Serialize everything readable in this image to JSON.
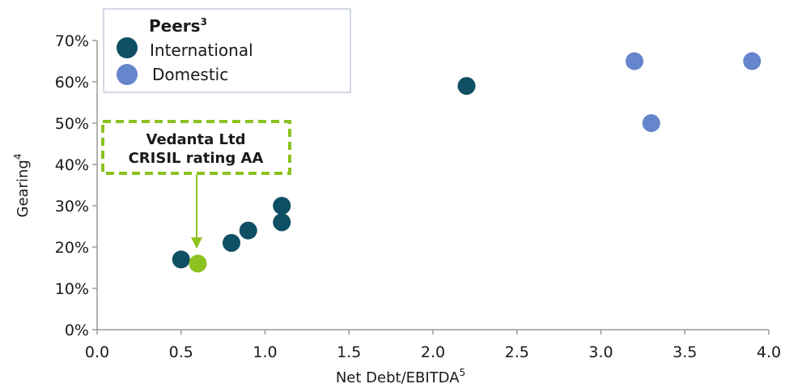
{
  "chart_data": {
    "type": "scatter",
    "xlabel": "Net Debt/EBITDA",
    "xlabel_sup": "5",
    "ylabel": "Gearing",
    "ylabel_sup": "4",
    "xlim": [
      0,
      4
    ],
    "ylim": [
      0,
      0.7
    ],
    "x_ticks": [
      0,
      0.5,
      1,
      1.5,
      2,
      2.5,
      3,
      3.5,
      4
    ],
    "x_tick_labels": [
      "0.0",
      "0.5",
      "1.0",
      "1.5",
      "2.0",
      "2.5",
      "3.0",
      "3.5",
      "4.0"
    ],
    "y_ticks": [
      0,
      0.1,
      0.2,
      0.3,
      0.4,
      0.5,
      0.6,
      0.7
    ],
    "y_tick_labels": [
      "0%",
      "10%",
      "20%",
      "30%",
      "40%",
      "50%",
      "60%",
      "70%"
    ],
    "grid": false,
    "legend": {
      "title": "Peers",
      "title_sup": "3",
      "placement": "top-left"
    },
    "series": [
      {
        "name": "International",
        "color": "#0e4f63",
        "points": [
          {
            "x": 0.5,
            "y": 0.17
          },
          {
            "x": 0.8,
            "y": 0.21
          },
          {
            "x": 0.9,
            "y": 0.24
          },
          {
            "x": 1.1,
            "y": 0.26
          },
          {
            "x": 1.1,
            "y": 0.3
          },
          {
            "x": 2.2,
            "y": 0.59
          }
        ]
      },
      {
        "name": "Domestic",
        "color": "#6585cc",
        "points": [
          {
            "x": 3.2,
            "y": 0.65
          },
          {
            "x": 3.3,
            "y": 0.5
          },
          {
            "x": 3.9,
            "y": 0.65
          }
        ]
      }
    ],
    "highlight": {
      "color": "#8cc21f",
      "point": {
        "x": 0.6,
        "y": 0.16
      },
      "label_line1": "Vedanta Ltd",
      "label_line2": "CRISIL rating AA"
    }
  }
}
